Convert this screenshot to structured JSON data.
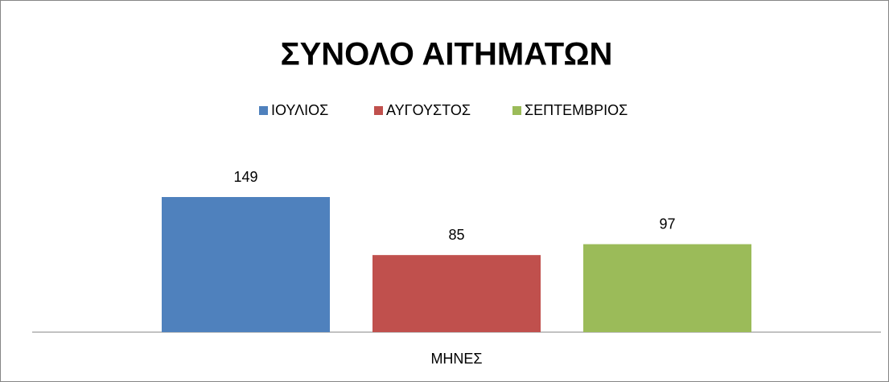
{
  "chart_data": {
    "type": "bar",
    "title": "ΣΥΝΟΛΟ ΑΙΤΗΜΑΤΩΝ",
    "categories": [
      "ΜΗΝΕΣ"
    ],
    "series": [
      {
        "name": "ΙΟΥΛΙΟΣ",
        "color": "#4f81bd",
        "values": [
          149
        ]
      },
      {
        "name": "ΑΥΓΟΥΣΤΟΣ",
        "color": "#c0504d",
        "values": [
          85
        ]
      },
      {
        "name": "ΣΕΠΤΕΜΒΡΙΟΣ",
        "color": "#9bbb59",
        "values": [
          97
        ]
      }
    ],
    "legend": "top"
  }
}
